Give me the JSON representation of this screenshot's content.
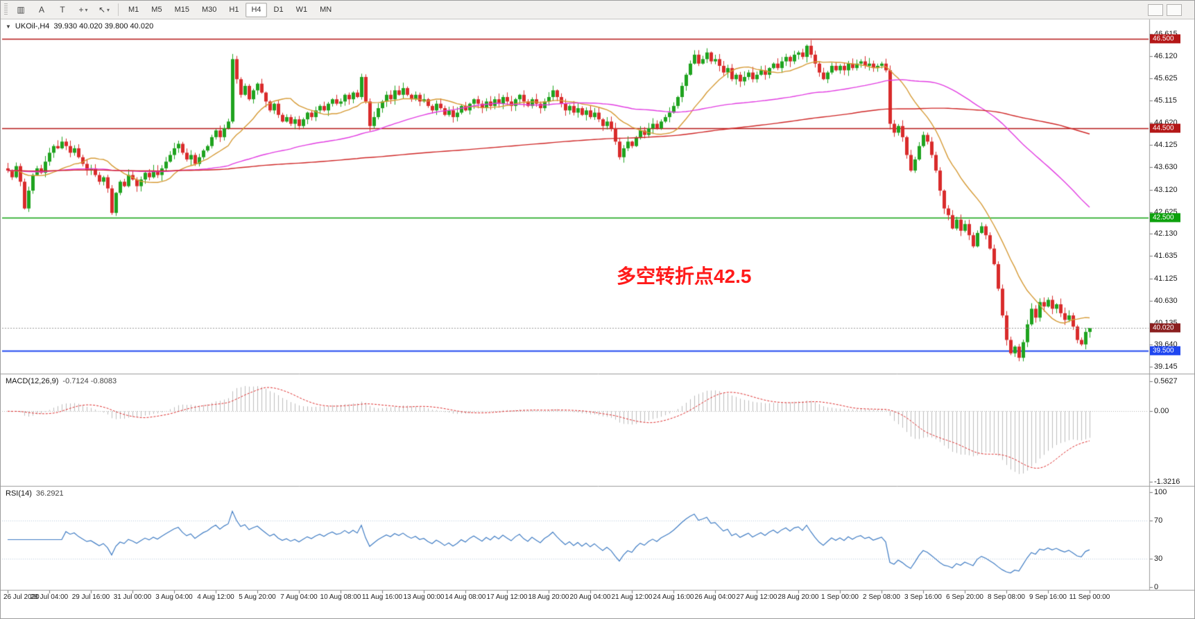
{
  "toolbar": {
    "tools": [
      {
        "name": "charts-grid-icon",
        "glyph": "▥"
      },
      {
        "name": "cursor-tool-icon",
        "glyph": "A"
      },
      {
        "name": "text-tool-icon",
        "glyph": "T"
      },
      {
        "name": "crosshair-tool-icon",
        "glyph": "+",
        "caret": "▾"
      },
      {
        "name": "draw-arrow-tool-icon",
        "glyph": "↖",
        "caret": "▾"
      }
    ],
    "timeframes": [
      "M1",
      "M5",
      "M15",
      "M30",
      "H1",
      "H4",
      "D1",
      "W1",
      "MN"
    ],
    "active_timeframe": "H4"
  },
  "chart": {
    "collapse_caret": "▼",
    "symbol_title": "UKOil-,H4",
    "ohlc_text": "39.930 40.020 39.800 40.020",
    "annotation": {
      "text": "多空转折点42.5",
      "color": "#ff1a1a"
    },
    "levels": [
      {
        "price": 46.5,
        "label": "46.500",
        "color": "#b41717",
        "lw": 1.5
      },
      {
        "price": 44.5,
        "label": "44.500",
        "color": "#b41717",
        "lw": 1.5
      },
      {
        "price": 42.5,
        "label": "42.500",
        "color": "#0da10d",
        "lw": 1.5
      },
      {
        "price": 39.5,
        "label": "39.500",
        "color": "#1f46f0",
        "lw": 2
      }
    ],
    "current_price": {
      "value": 40.02,
      "label": "40.020",
      "color": "#8b1f1f"
    }
  },
  "chart_data": {
    "type": "candlestick",
    "symbol": "UKOil-",
    "timeframe": "H4",
    "ylim": [
      39.145,
      46.615
    ],
    "price_scale_labels": [
      "46.615",
      "46.120",
      "45.625",
      "45.115",
      "44.620",
      "44.125",
      "43.630",
      "43.120",
      "42.625",
      "42.130",
      "41.635",
      "41.125",
      "40.630",
      "40.135",
      "39.640",
      "39.145"
    ],
    "time_labels": [
      "26 Jul 2020",
      "28 Jul 04:00",
      "29 Jul 16:00",
      "31 Jul 00:00",
      "3 Aug 04:00",
      "4 Aug 12:00",
      "5 Aug 20:00",
      "7 Aug 04:00",
      "10 Aug 08:00",
      "11 Aug 16:00",
      "13 Aug 00:00",
      "14 Aug 08:00",
      "17 Aug 12:00",
      "18 Aug 20:00",
      "20 Aug 04:00",
      "21 Aug 12:00",
      "24 Aug 16:00",
      "26 Aug 04:00",
      "27 Aug 12:00",
      "28 Aug 20:00",
      "1 Sep 00:00",
      "2 Sep 08:00",
      "3 Sep 16:00",
      "6 Sep 20:00",
      "8 Sep 08:00",
      "9 Sep 16:00",
      "11 Sep 00:00"
    ],
    "open_first": 43.6,
    "closes": [
      43.55,
      43.4,
      43.65,
      43.3,
      42.7,
      43.1,
      43.45,
      43.6,
      43.5,
      43.75,
      43.95,
      44.1,
      44.05,
      44.2,
      44.1,
      43.95,
      44.05,
      43.85,
      43.7,
      43.55,
      43.6,
      43.45,
      43.3,
      43.4,
      43.15,
      42.6,
      43.05,
      43.3,
      43.2,
      43.45,
      43.35,
      43.2,
      43.35,
      43.5,
      43.4,
      43.55,
      43.45,
      43.6,
      43.75,
      43.9,
      44.05,
      44.15,
      43.95,
      43.8,
      43.9,
      43.7,
      43.85,
      44.0,
      44.1,
      44.3,
      44.45,
      44.3,
      44.5,
      44.65,
      46.05,
      45.6,
      45.25,
      45.45,
      45.15,
      45.35,
      45.5,
      45.3,
      45.1,
      44.9,
      45.05,
      44.8,
      44.65,
      44.75,
      44.6,
      44.7,
      44.55,
      44.7,
      44.85,
      44.75,
      44.9,
      45.0,
      44.9,
      45.05,
      45.15,
      45.05,
      45.1,
      45.25,
      45.15,
      45.3,
      45.2,
      45.65,
      45.1,
      44.55,
      44.75,
      44.95,
      45.1,
      45.25,
      45.15,
      45.35,
      45.25,
      45.4,
      45.25,
      45.15,
      45.25,
      45.1,
      45.15,
      45.0,
      44.9,
      45.05,
      44.95,
      44.8,
      44.9,
      44.75,
      44.85,
      45.0,
      44.9,
      45.05,
      45.15,
      45.05,
      44.95,
      45.1,
      45.0,
      45.15,
      45.05,
      45.2,
      45.1,
      45.0,
      45.15,
      45.25,
      45.1,
      45.0,
      45.15,
      45.05,
      44.95,
      45.1,
      45.2,
      45.35,
      45.2,
      45.05,
      44.9,
      45.0,
      44.85,
      44.95,
      44.8,
      44.9,
      44.75,
      44.85,
      44.7,
      44.55,
      44.65,
      44.5,
      44.2,
      43.85,
      44.05,
      44.2,
      44.1,
      44.3,
      44.45,
      44.35,
      44.5,
      44.6,
      44.5,
      44.65,
      44.75,
      44.85,
      45.0,
      45.2,
      45.45,
      45.7,
      45.95,
      46.15,
      45.95,
      46.05,
      46.2,
      46.0,
      46.05,
      45.9,
      45.75,
      45.85,
      45.6,
      45.7,
      45.55,
      45.65,
      45.75,
      45.6,
      45.7,
      45.8,
      45.7,
      45.85,
      45.95,
      45.85,
      46.0,
      46.1,
      46.0,
      46.15,
      46.2,
      46.1,
      46.35,
      46.15,
      45.95,
      45.75,
      45.6,
      45.75,
      45.9,
      45.8,
      45.9,
      45.8,
      45.95,
      45.85,
      45.95,
      46.0,
      45.9,
      45.95,
      45.85,
      45.9,
      45.95,
      45.8,
      44.6,
      44.4,
      44.55,
      44.3,
      43.9,
      43.55,
      43.8,
      44.1,
      44.35,
      44.2,
      43.9,
      43.55,
      43.1,
      42.7,
      42.55,
      42.25,
      42.45,
      42.2,
      42.35,
      42.1,
      41.85,
      42.15,
      42.3,
      42.1,
      41.8,
      41.45,
      40.9,
      40.3,
      39.75,
      39.45,
      39.6,
      39.35,
      39.7,
      40.1,
      40.45,
      40.25,
      40.6,
      40.5,
      40.65,
      40.45,
      40.55,
      40.35,
      40.2,
      40.3,
      40.05,
      39.75,
      39.65,
      39.93,
      40.02
    ],
    "last_bar": {
      "o": 39.93,
      "h": 40.02,
      "l": 39.8,
      "c": 40.02
    },
    "moving_averages": [
      {
        "period": 15,
        "color": "#d69a34"
      },
      {
        "period": 65,
        "color": "#e23ce2"
      },
      {
        "period": 200,
        "color": "#cf2626"
      }
    ]
  },
  "macd": {
    "title": "MACD(12,26,9)",
    "values_text": "-0.7124 -0.8083",
    "fast": 12,
    "slow": 26,
    "signal": 9,
    "scale_labels": [
      "0.5627",
      "0.00",
      "-1.3216"
    ],
    "scale_values": [
      0.5627,
      0,
      -1.3216
    ],
    "hist_color": "#bdbdbd",
    "signal_color": "#e03030"
  },
  "rsi": {
    "title": "RSI(14)",
    "value_text": "36.2921",
    "period": 14,
    "scale_labels": [
      "100",
      "70",
      "30",
      "0"
    ],
    "scale_values": [
      100,
      70,
      30,
      0
    ],
    "line_color": "#3f7cc4"
  },
  "colors": {
    "up": "#1fa31f",
    "down": "#d92b2b",
    "separator": "#9b9b9b",
    "current_line": "#999999",
    "axis_text": "#1a1a1a"
  }
}
